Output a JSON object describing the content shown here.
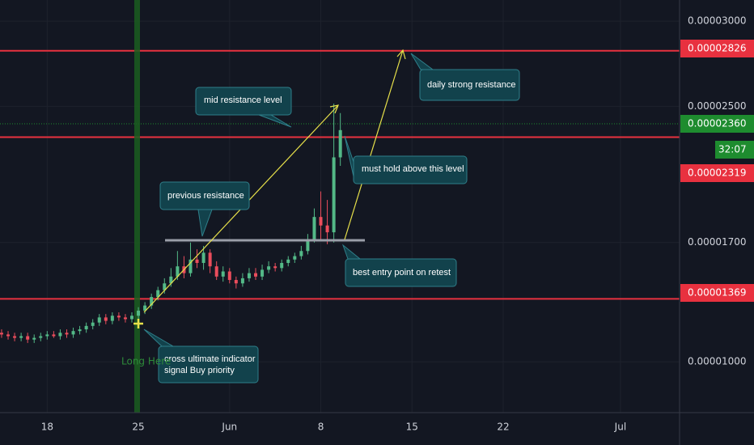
{
  "chart_data": {
    "type": "candlestick",
    "xlim": [
      14.44,
      66.6
    ],
    "ylim": [
      7.01e-06,
      3.124e-05
    ],
    "xticks": [
      18,
      25,
      {
        "value": 32,
        "label": "Jun"
      },
      8,
      15,
      22,
      {
        "value": 62,
        "label": "Jul"
      }
    ],
    "xtick_values": [
      18,
      25,
      32,
      39,
      46,
      53,
      62
    ],
    "yticks": [
      {
        "value": 3e-05,
        "label": "0.00003000"
      },
      {
        "value": 2.5e-05,
        "label": "0.00002500"
      },
      {
        "value": 1.7e-05,
        "label": "0.00001700"
      },
      {
        "value": 1e-05,
        "label": "0.00001000"
      }
    ],
    "grid": true,
    "up_color": "#53b987",
    "down_color": "#eb4d5c",
    "x": [
      14.5,
      15,
      15.5,
      16,
      16.5,
      17,
      17.5,
      18,
      18.5,
      19,
      19.5,
      20,
      20.5,
      21,
      21.5,
      22,
      22.5,
      23,
      23.5,
      24,
      24.5,
      25,
      25.5,
      26,
      26.5,
      27,
      27.5,
      28,
      28.5,
      29,
      29.5,
      30,
      30.5,
      31,
      31.5,
      32,
      32.5,
      33,
      33.5,
      34,
      34.5,
      35,
      35.5,
      36,
      36.5,
      37,
      37.5,
      38,
      38.5,
      39,
      39.5,
      40,
      40.5
    ],
    "open": [
      1.17e-05,
      1.16e-05,
      1.15e-05,
      1.14e-05,
      1.15e-05,
      1.13e-05,
      1.14e-05,
      1.15e-05,
      1.16e-05,
      1.15e-05,
      1.17e-05,
      1.16e-05,
      1.18e-05,
      1.19e-05,
      1.21e-05,
      1.23e-05,
      1.26e-05,
      1.24e-05,
      1.27e-05,
      1.26e-05,
      1.25e-05,
      1.27e-05,
      1.3e-05,
      1.33e-05,
      1.38e-05,
      1.42e-05,
      1.46e-05,
      1.5e-05,
      1.56e-05,
      1.52e-05,
      1.6e-05,
      1.58e-05,
      1.64e-05,
      1.56e-05,
      1.5e-05,
      1.53e-05,
      1.48e-05,
      1.46e-05,
      1.49e-05,
      1.52e-05,
      1.5e-05,
      1.54e-05,
      1.56e-05,
      1.55e-05,
      1.58e-05,
      1.6e-05,
      1.62e-05,
      1.65e-05,
      1.72e-05,
      1.85e-05,
      1.8e-05,
      1.76e-05,
      2.2e-05
    ],
    "high": [
      1.19e-05,
      1.18e-05,
      1.17e-05,
      1.17e-05,
      1.17e-05,
      1.16e-05,
      1.17e-05,
      1.18e-05,
      1.18e-05,
      1.19e-05,
      1.19e-05,
      1.2e-05,
      1.21e-05,
      1.23e-05,
      1.25e-05,
      1.28e-05,
      1.28e-05,
      1.29e-05,
      1.29e-05,
      1.28e-05,
      1.29e-05,
      1.32e-05,
      1.35e-05,
      1.4e-05,
      1.44e-05,
      1.49e-05,
      1.55e-05,
      1.65e-05,
      1.62e-05,
      1.7e-05,
      1.66e-05,
      1.68e-05,
      1.66e-05,
      1.59e-05,
      1.56e-05,
      1.55e-05,
      1.5e-05,
      1.52e-05,
      1.55e-05,
      1.55e-05,
      1.57e-05,
      1.59e-05,
      1.58e-05,
      1.6e-05,
      1.62e-05,
      1.64e-05,
      1.68e-05,
      1.75e-05,
      1.9e-05,
      2e-05,
      1.95e-05,
      2.515e-05,
      2.46e-05
    ],
    "low": [
      1.14e-05,
      1.13e-05,
      1.12e-05,
      1.12e-05,
      1.11e-05,
      1.11e-05,
      1.12e-05,
      1.13e-05,
      1.14e-05,
      1.13e-05,
      1.14e-05,
      1.14e-05,
      1.16e-05,
      1.17e-05,
      1.19e-05,
      1.21e-05,
      1.22e-05,
      1.22e-05,
      1.24e-05,
      1.23e-05,
      1.23e-05,
      1.25e-05,
      1.28e-05,
      1.31e-05,
      1.36e-05,
      1.4e-05,
      1.44e-05,
      1.48e-05,
      1.49e-05,
      1.5e-05,
      1.55e-05,
      1.54e-05,
      1.52e-05,
      1.48e-05,
      1.47e-05,
      1.46e-05,
      1.43e-05,
      1.44e-05,
      1.47e-05,
      1.48e-05,
      1.48e-05,
      1.52e-05,
      1.53e-05,
      1.53e-05,
      1.56e-05,
      1.58e-05,
      1.6e-05,
      1.63e-05,
      1.7e-05,
      1.72e-05,
      1.69e-05,
      1.7e-05,
      2.15e-05
    ],
    "close": [
      1.16e-05,
      1.15e-05,
      1.14e-05,
      1.15e-05,
      1.13e-05,
      1.14e-05,
      1.15e-05,
      1.16e-05,
      1.15e-05,
      1.17e-05,
      1.16e-05,
      1.18e-05,
      1.19e-05,
      1.21e-05,
      1.23e-05,
      1.26e-05,
      1.24e-05,
      1.27e-05,
      1.26e-05,
      1.25e-05,
      1.27e-05,
      1.3e-05,
      1.33e-05,
      1.38e-05,
      1.42e-05,
      1.46e-05,
      1.5e-05,
      1.56e-05,
      1.52e-05,
      1.6e-05,
      1.58e-05,
      1.64e-05,
      1.56e-05,
      1.5e-05,
      1.53e-05,
      1.48e-05,
      1.46e-05,
      1.49e-05,
      1.52e-05,
      1.5e-05,
      1.54e-05,
      1.56e-05,
      1.55e-05,
      1.58e-05,
      1.6e-05,
      1.62e-05,
      1.65e-05,
      1.72e-05,
      1.85e-05,
      1.8e-05,
      1.76e-05,
      2.2e-05,
      2.36e-05
    ],
    "levels": [
      {
        "value": 2.826e-05,
        "label": "0.00002826",
        "color": "#e8313f"
      },
      {
        "value": 2.319e-05,
        "label": "0.00002319",
        "color": "#e8313f"
      },
      {
        "value": 1.369e-05,
        "label": "0.00001369",
        "color": "#e8313f"
      }
    ],
    "last_price": {
      "value": 2.36e-05,
      "label": "0.00002360",
      "color": "#1e8c2f"
    },
    "countdown": "32:07",
    "annotations": [
      "mid resistance level",
      "daily strong resistance",
      "must hold above this level",
      "previous resistance",
      "best entry point on retest",
      "cross ultimate indicator",
      "signal Buy priority",
      "Long Here"
    ]
  }
}
